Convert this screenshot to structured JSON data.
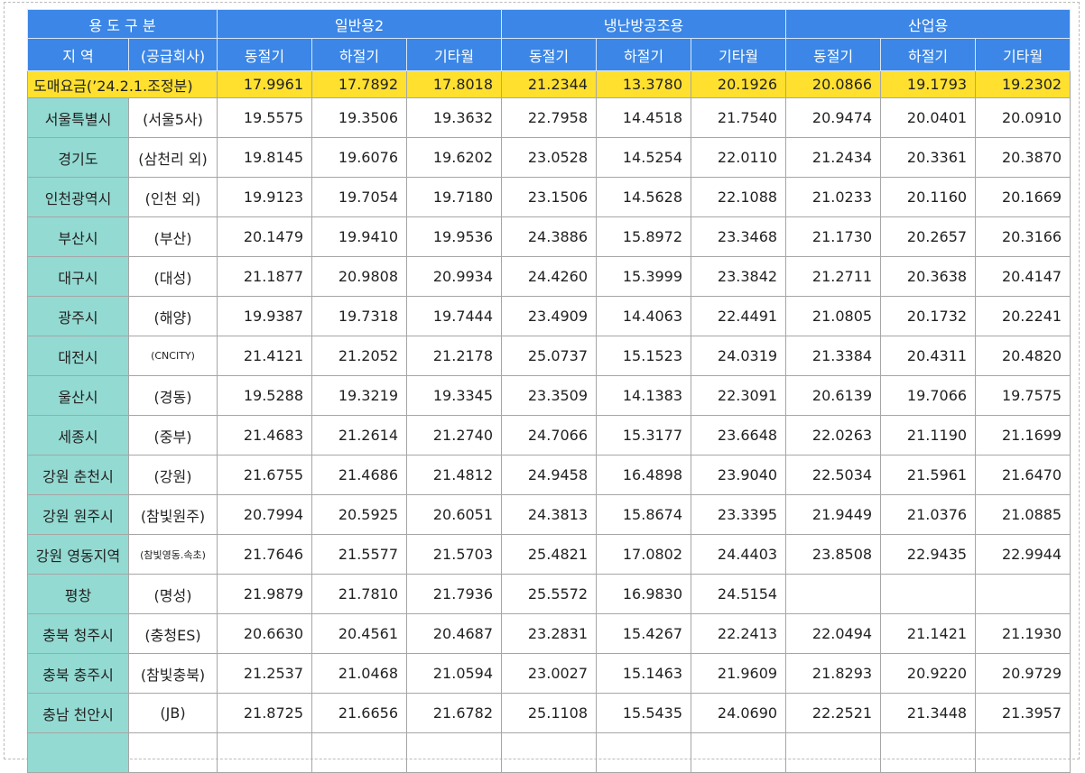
{
  "header": {
    "group_label": "용 도 구 분",
    "groups": [
      "일반용2",
      "냉난방공조용",
      "산업용"
    ],
    "region_label": "지 역",
    "company_label": "(공급회사)",
    "seasons": [
      "동절기",
      "하절기",
      "기타월",
      "동절기",
      "하절기",
      "기타월",
      "동절기",
      "하절기",
      "기타월"
    ]
  },
  "wholesale": {
    "label": "도매요금(’24.2.1.조정분)",
    "values": [
      "17.9961",
      "17.7892",
      "17.8018",
      "21.2344",
      "13.3780",
      "20.1926",
      "20.0866",
      "19.1793",
      "19.2302"
    ]
  },
  "rows": [
    {
      "region": "서울특별시",
      "company": "(서울5사)",
      "values": [
        "19.5575",
        "19.3506",
        "19.3632",
        "22.7958",
        "14.4518",
        "21.7540",
        "20.9474",
        "20.0401",
        "20.0910"
      ]
    },
    {
      "region": "경기도",
      "company": "(삼천리 외)",
      "values": [
        "19.8145",
        "19.6076",
        "19.6202",
        "23.0528",
        "14.5254",
        "22.0110",
        "21.2434",
        "20.3361",
        "20.3870"
      ]
    },
    {
      "region": "인천광역시",
      "company": "(인천 외)",
      "values": [
        "19.9123",
        "19.7054",
        "19.7180",
        "23.1506",
        "14.5628",
        "22.1088",
        "21.0233",
        "20.1160",
        "20.1669"
      ]
    },
    {
      "region": "부산시",
      "company": "(부산)",
      "values": [
        "20.1479",
        "19.9410",
        "19.9536",
        "24.3886",
        "15.8972",
        "23.3468",
        "21.1730",
        "20.2657",
        "20.3166"
      ]
    },
    {
      "region": "대구시",
      "company": "(대성)",
      "values": [
        "21.1877",
        "20.9808",
        "20.9934",
        "24.4260",
        "15.3999",
        "23.3842",
        "21.2711",
        "20.3638",
        "20.4147"
      ]
    },
    {
      "region": "광주시",
      "company": "(해양)",
      "values": [
        "19.9387",
        "19.7318",
        "19.7444",
        "23.4909",
        "14.4063",
        "22.4491",
        "21.0805",
        "20.1732",
        "20.2241"
      ]
    },
    {
      "region": "대전시",
      "company": "(CNCITY)",
      "values": [
        "21.4121",
        "21.2052",
        "21.2178",
        "25.0737",
        "15.1523",
        "24.0319",
        "21.3384",
        "20.4311",
        "20.4820"
      ]
    },
    {
      "region": "울산시",
      "company": "(경동)",
      "values": [
        "19.5288",
        "19.3219",
        "19.3345",
        "23.3509",
        "14.1383",
        "22.3091",
        "20.6139",
        "19.7066",
        "19.7575"
      ]
    },
    {
      "region": "세종시",
      "company": "(중부)",
      "values": [
        "21.4683",
        "21.2614",
        "21.2740",
        "24.7066",
        "15.3177",
        "23.6648",
        "22.0263",
        "21.1190",
        "21.1699"
      ]
    },
    {
      "region": "강원 춘천시",
      "company": "(강원)",
      "values": [
        "21.6755",
        "21.4686",
        "21.4812",
        "24.9458",
        "16.4898",
        "23.9040",
        "22.5034",
        "21.5961",
        "21.6470"
      ]
    },
    {
      "region": "강원 원주시",
      "company": "(참빛원주)",
      "values": [
        "20.7994",
        "20.5925",
        "20.6051",
        "24.3813",
        "15.8674",
        "23.3395",
        "21.9449",
        "21.0376",
        "21.0885"
      ]
    },
    {
      "region": "강원 영동지역",
      "company": "(참빛영동.속초)",
      "values": [
        "21.7646",
        "21.5577",
        "21.5703",
        "25.4821",
        "17.0802",
        "24.4403",
        "23.8508",
        "22.9435",
        "22.9944"
      ]
    },
    {
      "region": "평창",
      "company": "(명성)",
      "values": [
        "21.9879",
        "21.7810",
        "21.7936",
        "25.5572",
        "16.9830",
        "24.5154"
      ]
    },
    {
      "region": "충북 청주시",
      "company": "(충청ES)",
      "values": [
        "20.6630",
        "20.4561",
        "20.4687",
        "23.2831",
        "15.4267",
        "22.2413",
        "22.0494",
        "21.1421",
        "21.1930"
      ]
    },
    {
      "region": "충북 충주시",
      "company": "(참빛충북)",
      "values": [
        "21.2537",
        "21.0468",
        "21.0594",
        "23.0027",
        "15.1463",
        "21.9609",
        "21.8293",
        "20.9220",
        "20.9729"
      ]
    },
    {
      "region": "충남 천안시",
      "company": "(JB)",
      "values": [
        "21.8725",
        "21.6656",
        "21.6782",
        "25.1108",
        "15.5435",
        "24.0690",
        "22.2521",
        "21.3448",
        "21.3957"
      ]
    }
  ]
}
